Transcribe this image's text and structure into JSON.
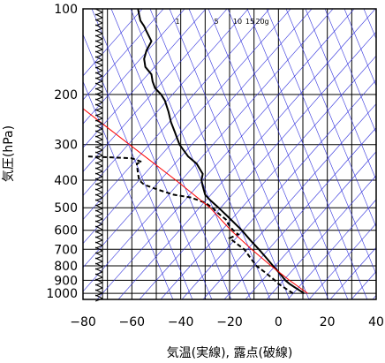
{
  "chart_data": {
    "type": "line",
    "title": "",
    "xlabel": "気温(実線), 露点(破線)",
    "ylabel": "気圧(hPa)",
    "xlim": [
      -80,
      40
    ],
    "ylim": [
      100,
      1050
    ],
    "yscale": "log",
    "xticks": [
      -80,
      -60,
      -40,
      -20,
      0,
      20,
      40
    ],
    "yticks": [
      100,
      200,
      300,
      400,
      500,
      600,
      700,
      800,
      900,
      1000
    ],
    "grid": true,
    "mixing_ratio_labels": [
      "1",
      "5",
      "10",
      "15",
      "20g"
    ],
    "series": [
      {
        "style": "solid",
        "color": "#000000",
        "points": [
          [
            1000,
            10.5
          ],
          [
            975,
            8.5
          ],
          [
            950,
            6.5
          ],
          [
            925,
            4.5
          ],
          [
            900,
            2.8
          ],
          [
            850,
            0.5
          ],
          [
            800,
            -2.2
          ],
          [
            750,
            -5.0
          ],
          [
            700,
            -8.0
          ],
          [
            650,
            -11.5
          ],
          [
            600,
            -15.0
          ],
          [
            550,
            -19.5
          ],
          [
            500,
            -24.5
          ],
          [
            470,
            -28.0
          ],
          [
            450,
            -30.0
          ],
          [
            420,
            -31.0
          ],
          [
            400,
            -31.5
          ],
          [
            380,
            -31.0
          ],
          [
            350,
            -33.5
          ],
          [
            330,
            -37.0
          ],
          [
            300,
            -40.5
          ],
          [
            270,
            -42.5
          ],
          [
            250,
            -44.0
          ],
          [
            230,
            -45.0
          ],
          [
            210,
            -46.5
          ],
          [
            200,
            -48.0
          ],
          [
            190,
            -50.5
          ],
          [
            180,
            -51.5
          ],
          [
            170,
            -52.0
          ],
          [
            160,
            -54.5
          ],
          [
            150,
            -55.0
          ],
          [
            140,
            -54.0
          ],
          [
            130,
            -52.0
          ],
          [
            120,
            -54.0
          ],
          [
            115,
            -55.0
          ],
          [
            110,
            -56.5
          ],
          [
            105,
            -57.0
          ],
          [
            100,
            -57.5
          ]
        ]
      },
      {
        "style": "dashed",
        "color": "#000000",
        "points": [
          [
            1000,
            6.0
          ],
          [
            975,
            4.0
          ],
          [
            950,
            2.0
          ],
          [
            925,
            0.0
          ],
          [
            900,
            -1.5
          ],
          [
            850,
            -5.0
          ],
          [
            800,
            -9.0
          ],
          [
            750,
            -11.5
          ],
          [
            700,
            -14.0
          ],
          [
            670,
            -17.0
          ],
          [
            640,
            -20.0
          ],
          [
            620,
            -16.5
          ],
          [
            600,
            -18.5
          ],
          [
            580,
            -20.0
          ],
          [
            550,
            -21.5
          ],
          [
            520,
            -25.0
          ],
          [
            500,
            -27.0
          ],
          [
            480,
            -30.0
          ],
          [
            460,
            -36.0
          ],
          [
            450,
            -43.0
          ],
          [
            430,
            -50.0
          ],
          [
            415,
            -55.0
          ],
          [
            400,
            -57.0
          ],
          [
            380,
            -57.5
          ],
          [
            350,
            -58.0
          ],
          [
            345,
            -56.0
          ],
          [
            335,
            -60.0
          ],
          [
            330,
            -78.0
          ]
        ]
      },
      {
        "style": "solid",
        "color": "#ff0000",
        "points": [
          [
            1000,
            12.0
          ],
          [
            900,
            4.5
          ],
          [
            800,
            -3.0
          ],
          [
            700,
            -11.0
          ],
          [
            600,
            -19.5
          ],
          [
            500,
            -28.0
          ],
          [
            400,
            -42.0
          ],
          [
            300,
            -61.0
          ],
          [
            200,
            -87.5
          ]
        ]
      }
    ]
  }
}
